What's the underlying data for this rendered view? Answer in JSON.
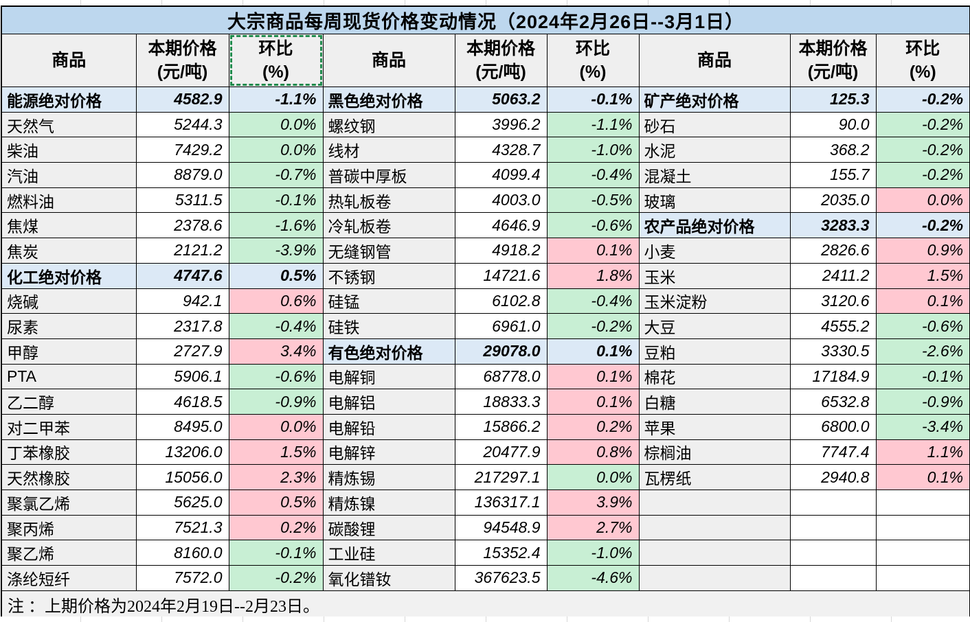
{
  "title": "大宗商品每周现货价格变动情况（2024年2月26日--3月1日）",
  "header": {
    "commodity": "商品",
    "price_line1": "本期价格",
    "price_line2": "(元/吨)",
    "chg_line1": "环比",
    "chg_line2": "(%)"
  },
  "note": "注 ：上期价格为2024年2月19日--2月23日。",
  "colors": {
    "title_bg": "#BDD7EE",
    "header_bg": "#EFEFEF",
    "section_bg": "#DCE9F6",
    "commodity_bg": "#EFEFEF",
    "increase_bg": "#FFC8D1",
    "increase_text": "#A80011",
    "decrease_bg": "#C8EFD4",
    "decrease_text": "#00632B",
    "selection_ants": "#1F8A4C",
    "border": "#000000"
  },
  "rows": [
    {
      "c": [
        {
          "name": "能源绝对价格",
          "price": "4582.9",
          "chg": "-1.1%",
          "type": "sec"
        },
        {
          "name": "黑色绝对价格",
          "price": "5063.2",
          "chg": "-0.1%",
          "type": "sec"
        },
        {
          "name": "矿产绝对价格",
          "price": "125.3",
          "chg": "-0.2%",
          "type": "sec"
        }
      ]
    },
    {
      "c": [
        {
          "name": "天然气",
          "price": "5244.3",
          "chg": "0.0%",
          "type": "down"
        },
        {
          "name": "螺纹钢",
          "price": "3996.2",
          "chg": "-1.1%",
          "type": "down"
        },
        {
          "name": "砂石",
          "price": "90.0",
          "chg": "-0.2%",
          "type": "down"
        }
      ]
    },
    {
      "c": [
        {
          "name": "柴油",
          "price": "7429.2",
          "chg": "0.0%",
          "type": "down"
        },
        {
          "name": "线材",
          "price": "4328.7",
          "chg": "-1.0%",
          "type": "down"
        },
        {
          "name": "水泥",
          "price": "368.2",
          "chg": "-0.2%",
          "type": "down"
        }
      ]
    },
    {
      "c": [
        {
          "name": "汽油",
          "price": "8879.0",
          "chg": "-0.7%",
          "type": "down"
        },
        {
          "name": "普碳中厚板",
          "price": "4099.4",
          "chg": "-0.4%",
          "type": "down"
        },
        {
          "name": "混凝土",
          "price": "155.7",
          "chg": "-0.2%",
          "type": "down"
        }
      ]
    },
    {
      "c": [
        {
          "name": "燃料油",
          "price": "5311.5",
          "chg": "-0.1%",
          "type": "down"
        },
        {
          "name": "热轧板卷",
          "price": "4003.0",
          "chg": "-0.5%",
          "type": "down"
        },
        {
          "name": "玻璃",
          "price": "2035.0",
          "chg": "0.0%",
          "type": "up"
        }
      ]
    },
    {
      "c": [
        {
          "name": "焦煤",
          "price": "2378.6",
          "chg": "-1.6%",
          "type": "down"
        },
        {
          "name": "冷轧板卷",
          "price": "4646.9",
          "chg": "-0.6%",
          "type": "down"
        },
        {
          "name": "农产品绝对价格",
          "price": "3283.3",
          "chg": "-0.2%",
          "type": "sec"
        }
      ]
    },
    {
      "c": [
        {
          "name": "焦炭",
          "price": "2121.2",
          "chg": "-3.9%",
          "type": "down"
        },
        {
          "name": "无缝钢管",
          "price": "4918.2",
          "chg": "0.1%",
          "type": "up"
        },
        {
          "name": "小麦",
          "price": "2826.6",
          "chg": "0.9%",
          "type": "up"
        }
      ]
    },
    {
      "c": [
        {
          "name": "化工绝对价格",
          "price": "4747.6",
          "chg": "0.5%",
          "type": "sec"
        },
        {
          "name": "不锈钢",
          "price": "14721.6",
          "chg": "1.8%",
          "type": "up"
        },
        {
          "name": "玉米",
          "price": "2411.2",
          "chg": "1.5%",
          "type": "up"
        }
      ]
    },
    {
      "c": [
        {
          "name": "烧碱",
          "price": "942.1",
          "chg": "0.6%",
          "type": "up"
        },
        {
          "name": "硅锰",
          "price": "6102.8",
          "chg": "-0.4%",
          "type": "down"
        },
        {
          "name": "玉米淀粉",
          "price": "3120.6",
          "chg": "0.1%",
          "type": "up"
        }
      ]
    },
    {
      "c": [
        {
          "name": "尿素",
          "price": "2317.8",
          "chg": "-0.4%",
          "type": "down"
        },
        {
          "name": "硅铁",
          "price": "6961.0",
          "chg": "-0.2%",
          "type": "down"
        },
        {
          "name": "大豆",
          "price": "4555.2",
          "chg": "-0.6%",
          "type": "down"
        }
      ]
    },
    {
      "c": [
        {
          "name": "甲醇",
          "price": "2727.9",
          "chg": "3.4%",
          "type": "up"
        },
        {
          "name": "有色绝对价格",
          "price": "29078.0",
          "chg": "0.1%",
          "type": "sec"
        },
        {
          "name": "豆粕",
          "price": "3330.5",
          "chg": "-2.6%",
          "type": "down"
        }
      ]
    },
    {
      "c": [
        {
          "name": "PTA",
          "price": "5906.1",
          "chg": "-0.6%",
          "type": "down"
        },
        {
          "name": "电解铜",
          "price": "68778.0",
          "chg": "0.1%",
          "type": "up"
        },
        {
          "name": "棉花",
          "price": "17184.9",
          "chg": "-0.1%",
          "type": "down"
        }
      ]
    },
    {
      "c": [
        {
          "name": "乙二醇",
          "price": "4618.5",
          "chg": "-0.9%",
          "type": "down"
        },
        {
          "name": "电解铝",
          "price": "18833.3",
          "chg": "0.1%",
          "type": "up"
        },
        {
          "name": "白糖",
          "price": "6532.8",
          "chg": "-0.9%",
          "type": "down"
        }
      ]
    },
    {
      "c": [
        {
          "name": "对二甲苯",
          "price": "8495.0",
          "chg": "0.0%",
          "type": "up"
        },
        {
          "name": "电解铅",
          "price": "15866.2",
          "chg": "0.2%",
          "type": "up"
        },
        {
          "name": "苹果",
          "price": "6800.0",
          "chg": "-3.4%",
          "type": "down"
        }
      ]
    },
    {
      "c": [
        {
          "name": "丁苯橡胶",
          "price": "13206.0",
          "chg": "1.5%",
          "type": "up"
        },
        {
          "name": "电解锌",
          "price": "20477.9",
          "chg": "0.8%",
          "type": "up"
        },
        {
          "name": "棕榈油",
          "price": "7747.4",
          "chg": "1.1%",
          "type": "up"
        }
      ]
    },
    {
      "c": [
        {
          "name": "天然橡胶",
          "price": "15056.0",
          "chg": "2.3%",
          "type": "up"
        },
        {
          "name": "精炼锡",
          "price": "217297.1",
          "chg": "0.0%",
          "type": "down"
        },
        {
          "name": "瓦楞纸",
          "price": "2940.8",
          "chg": "0.1%",
          "type": "up"
        }
      ]
    },
    {
      "c": [
        {
          "name": "聚氯乙烯",
          "price": "5625.0",
          "chg": "0.5%",
          "type": "up"
        },
        {
          "name": "精炼镍",
          "price": "136317.1",
          "chg": "3.9%",
          "type": "up"
        },
        {
          "name": "",
          "price": "",
          "chg": "",
          "type": "empty"
        }
      ]
    },
    {
      "c": [
        {
          "name": "聚丙烯",
          "price": "7521.3",
          "chg": "0.2%",
          "type": "up"
        },
        {
          "name": "碳酸锂",
          "price": "94548.9",
          "chg": "2.7%",
          "type": "up"
        },
        {
          "name": "",
          "price": "",
          "chg": "",
          "type": "empty"
        }
      ]
    },
    {
      "c": [
        {
          "name": "聚乙烯",
          "price": "8160.0",
          "chg": "-0.1%",
          "type": "down"
        },
        {
          "name": "工业硅",
          "price": "15352.4",
          "chg": "-1.0%",
          "type": "down"
        },
        {
          "name": "",
          "price": "",
          "chg": "",
          "type": "empty"
        }
      ]
    },
    {
      "c": [
        {
          "name": "涤纶短纤",
          "price": "7572.0",
          "chg": "-0.2%",
          "type": "down"
        },
        {
          "name": "氧化镨钕",
          "price": "367623.5",
          "chg": "-4.6%",
          "type": "down"
        },
        {
          "name": "",
          "price": "",
          "chg": "",
          "type": "empty"
        }
      ]
    }
  ]
}
